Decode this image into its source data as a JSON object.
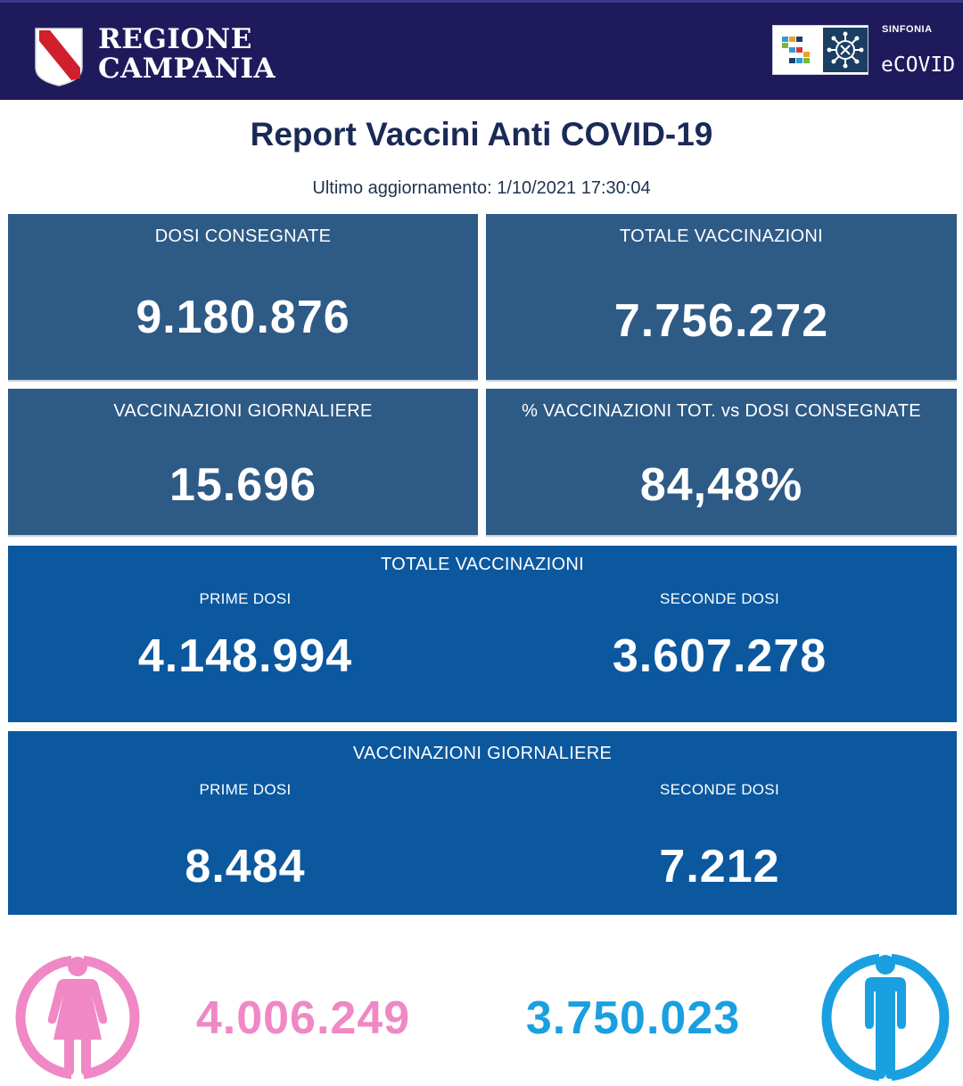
{
  "header": {
    "brand_line1": "REGIONE",
    "brand_line2": "CAMPANIA",
    "partner_small": "SINFONIA",
    "partner_name": "eCOVID",
    "colors": {
      "bar": "#1f1a5c",
      "crest_red": "#d0202e"
    }
  },
  "report": {
    "title": "Report Vaccini Anti COVID-19",
    "updated": "Ultimo aggiornamento: 1/10/2021  17:30:04"
  },
  "cards": {
    "dosi_consegnate": {
      "label": "DOSI  CONSEGNATE",
      "value": "9.180.876"
    },
    "totale_vaccinazioni": {
      "label": "TOTALE VACCINAZIONI",
      "value": "7.756.272"
    },
    "vaccinazioni_giornaliere": {
      "label": "VACCINAZIONI GIORNALIERE",
      "value": "15.696"
    },
    "percentuale": {
      "label": "% VACCINAZIONI TOT. vs DOSI CONSEGNATE",
      "value": "84,48%"
    }
  },
  "totale_band": {
    "label": "TOTALE VACCINAZIONI",
    "prime_label": "PRIME DOSI",
    "prime_value": "4.148.994",
    "seconde_label": "SECONDE DOSI",
    "seconde_value": "3.607.278"
  },
  "giornaliere_band": {
    "label": "VACCINAZIONI GIORNALIERE",
    "prime_label": "PRIME DOSI",
    "prime_value": "8.484",
    "seconde_label": "SECONDE DOSI",
    "seconde_value": "7.212"
  },
  "gender": {
    "female_value": "4.006.249",
    "male_value": "3.750.023",
    "female_color": "#ef88c5",
    "male_color": "#1aa0e0",
    "female_icon": "female-icon",
    "male_icon": "male-icon"
  }
}
